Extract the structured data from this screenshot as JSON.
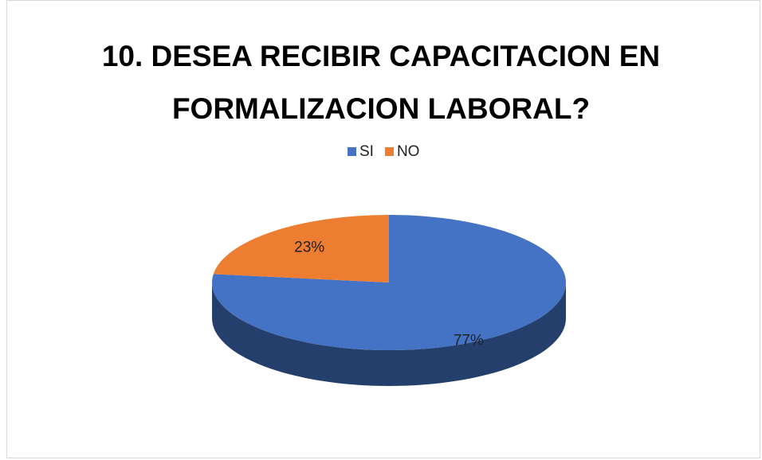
{
  "chart_data": {
    "type": "pie",
    "title": "10. DESEA RECIBIR CAPACITACION EN FORMALIZACION LABORAL?",
    "categories": [
      "SI",
      "NO"
    ],
    "values": [
      77,
      23
    ],
    "value_labels": [
      "77%",
      "23%"
    ],
    "colors": [
      "#4472c4",
      "#ed7d31"
    ],
    "legend": "top"
  }
}
